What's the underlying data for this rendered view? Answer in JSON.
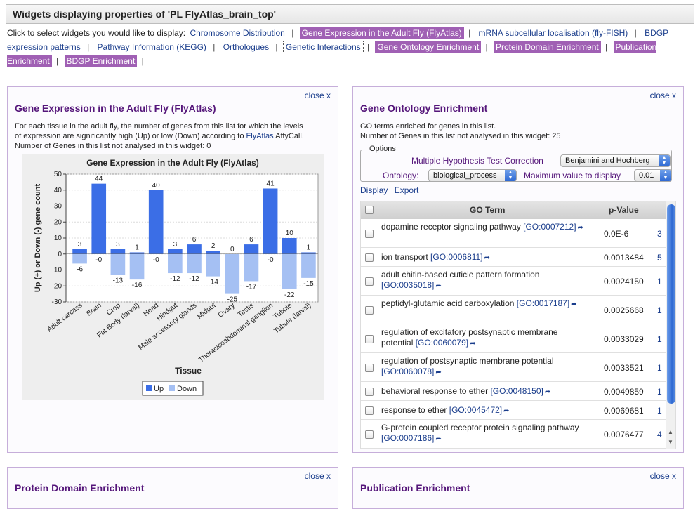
{
  "page": {
    "title": "Widgets displaying properties of 'PL FlyAtlas_brain_top'"
  },
  "selector": {
    "intro": "Click to select widgets you would like to display:",
    "options": [
      {
        "label": "Chromosome Distribution",
        "state": "plain"
      },
      {
        "label": "Gene Expression in the Adult Fly (FlyAtlas)",
        "state": "active"
      },
      {
        "label": "mRNA subcellular localisation (fly-FISH)",
        "state": "plain"
      },
      {
        "label": "BDGP expression patterns",
        "state": "plain"
      },
      {
        "label": "Pathway Information (KEGG)",
        "state": "plain"
      },
      {
        "label": "Orthologues",
        "state": "plain"
      },
      {
        "label": "Genetic Interactions",
        "state": "boxed"
      },
      {
        "label": "Gene Ontology Enrichment",
        "state": "active"
      },
      {
        "label": "Protein Domain Enrichment",
        "state": "active"
      },
      {
        "label": "Publication Enrichment",
        "state": "active"
      },
      {
        "label": "BDGP Enrichment",
        "state": "active"
      }
    ]
  },
  "flyatlas": {
    "close_label": "close x",
    "title": "Gene Expression in the Adult Fly (FlyAtlas)",
    "desc_line1": "For each tissue in the adult fly, the number of genes from this list for which the levels",
    "desc_line2_pre": "of expression are significantly high (Up) or low (Down) according to ",
    "desc_link": "FlyAtlas",
    "desc_line2_post": " AffyCall.",
    "desc_line3": "Number of Genes in this list not analysed in this widget: 0"
  },
  "chart_data": {
    "type": "bar",
    "title": "Gene Expression in the Adult Fly (FlyAtlas)",
    "xlabel": "Tissue",
    "ylabel": "Up (+) or Down (-) gene count",
    "ylim": [
      -30,
      50
    ],
    "yticks": [
      50,
      40,
      30,
      20,
      10,
      0,
      -10,
      -20,
      -30
    ],
    "categories": [
      "Adult carcass",
      "Brain",
      "Crop",
      "Fat Body (larval)",
      "Head",
      "Hindgut",
      "Male accessory glands",
      "Midgut",
      "Ovary",
      "Testis",
      "Thoracicoabdominal ganglion",
      "Tubule",
      "Tubule (larval)"
    ],
    "series": [
      {
        "name": "Up",
        "color": "#3b6ee6",
        "values": [
          3,
          44,
          3,
          1,
          40,
          3,
          6,
          2,
          0,
          6,
          41,
          10,
          1
        ],
        "labels": [
          "3",
          "44",
          "3",
          "1",
          "40",
          "3",
          "6",
          "2",
          "0",
          "6",
          "41",
          "10",
          "1"
        ]
      },
      {
        "name": "Down",
        "color": "#a5c0f3",
        "values": [
          -6,
          0,
          -13,
          -16,
          0,
          -12,
          -12,
          -14,
          -25,
          -17,
          0,
          -22,
          -15
        ],
        "labels": [
          "-6",
          "-0",
          "-13",
          "-16",
          "-0",
          "-12",
          "-12",
          "-14",
          "-25",
          "-17",
          "-0",
          "-22",
          "-15"
        ]
      }
    ],
    "legend_position": "bottom",
    "grid": true
  },
  "goenrich": {
    "close_label": "close x",
    "title": "Gene Ontology Enrichment",
    "desc_line1": "GO terms enriched for genes in this list.",
    "desc_line2": "Number of Genes in this list not analysed in this widget: 25",
    "options_legend": "Options",
    "correction_label": "Multiple Hypothesis Test Correction",
    "correction_value": "Benjamini and Hochberg",
    "ontology_label": "Ontology:",
    "ontology_value": "biological_process",
    "maxval_label": "Maximum value to display",
    "maxval_value": "0.01",
    "tab_display": "Display",
    "tab_export": "Export",
    "col_term": "GO Term",
    "col_pvalue": "p-Value",
    "rows": [
      {
        "term": "dopamine receptor signaling pathway",
        "goid": "[GO:0007212]",
        "pvalue": "0.0E-6",
        "count": "3"
      },
      {
        "term": "ion transport",
        "goid": "[GO:0006811]",
        "pvalue": "0.0013484",
        "count": "5"
      },
      {
        "term": "adult chitin-based cuticle pattern formation",
        "goid": "[GO:0035018]",
        "pvalue": "0.0024150",
        "count": "1"
      },
      {
        "term": "peptidyl-glutamic acid carboxylation",
        "goid": "[GO:0017187]",
        "pvalue": "0.0025668",
        "count": "1"
      },
      {
        "term": "regulation of excitatory postsynaptic membrane potential",
        "goid": "[GO:0060079]",
        "pvalue": "0.0033029",
        "count": "1"
      },
      {
        "term": "regulation of postsynaptic membrane potential",
        "goid": "[GO:0060078]",
        "pvalue": "0.0033521",
        "count": "1"
      },
      {
        "term": "behavioral response to ether",
        "goid": "[GO:0048150]",
        "pvalue": "0.0049859",
        "count": "1"
      },
      {
        "term": "response to ether",
        "goid": "[GO:0045472]",
        "pvalue": "0.0069681",
        "count": "1"
      },
      {
        "term": "G-protein coupled receptor protein signaling pathway",
        "goid": "[GO:0007186]",
        "pvalue": "0.0076477",
        "count": "4"
      }
    ]
  },
  "protein": {
    "close_label": "close x",
    "title": "Protein Domain Enrichment"
  },
  "publication": {
    "close_label": "close x",
    "title": "Publication Enrichment"
  },
  "colors": {
    "accent": "#a060b4",
    "heading": "#55167a",
    "link": "#1a3d8c"
  }
}
